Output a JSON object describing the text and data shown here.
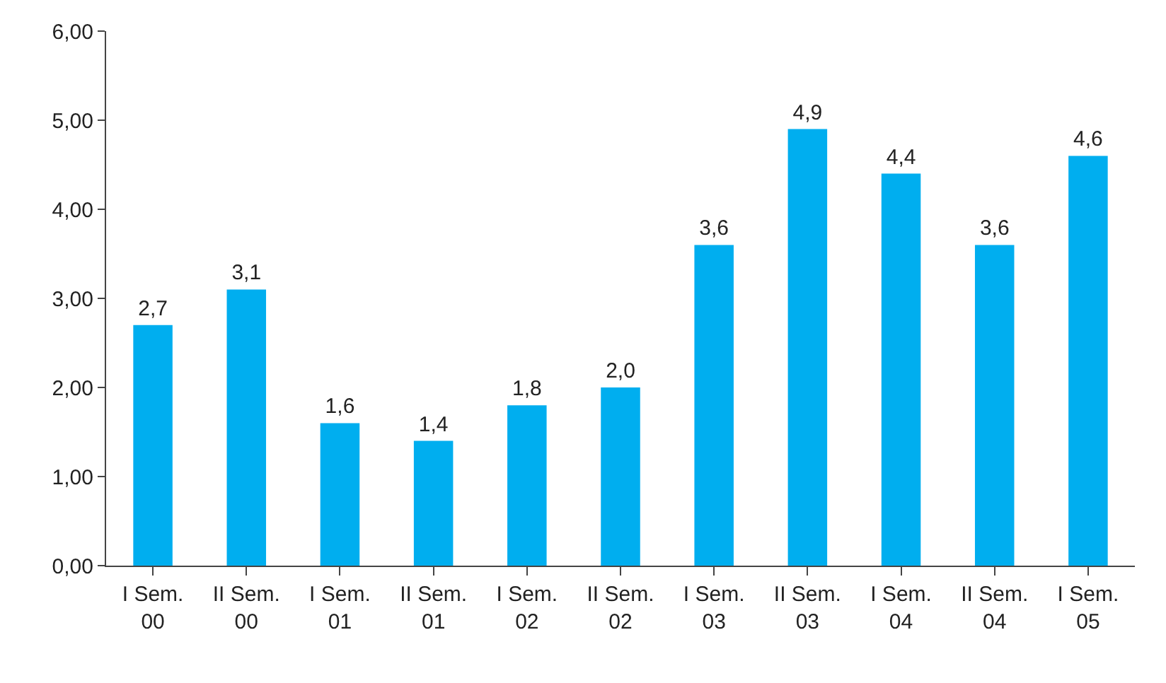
{
  "chart_data": {
    "type": "bar",
    "categories": [
      "I Sem.\n00",
      "II Sem.\n00",
      "I Sem.\n01",
      "II Sem.\n01",
      "I Sem.\n02",
      "II Sem.\n02",
      "I Sem.\n03",
      "II Sem.\n03",
      "I Sem.\n04",
      "II Sem.\n04",
      "I Sem.\n05"
    ],
    "values": [
      2.7,
      3.1,
      1.6,
      1.4,
      1.8,
      2.0,
      3.6,
      4.9,
      4.4,
      3.6,
      4.6
    ],
    "value_labels": [
      "2,7",
      "3,1",
      "1,6",
      "1,4",
      "1,8",
      "2,0",
      "3,6",
      "4,9",
      "4,4",
      "3,6",
      "4,6"
    ],
    "color": "#00aeef",
    "ylim": [
      0,
      6
    ],
    "yticks": [
      {
        "value": 0,
        "label": "0,00"
      },
      {
        "value": 1,
        "label": "1,00"
      },
      {
        "value": 2,
        "label": "2,00"
      },
      {
        "value": 3,
        "label": "3,00"
      },
      {
        "value": 4,
        "label": "4,00"
      },
      {
        "value": 5,
        "label": "5,00"
      },
      {
        "value": 6,
        "label": "6,00"
      }
    ]
  }
}
